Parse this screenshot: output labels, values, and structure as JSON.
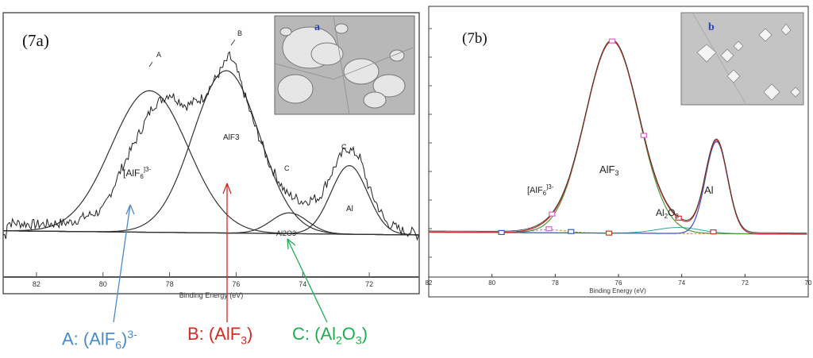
{
  "colors": {
    "blue": "#4a8bc9",
    "red": "#d42a22",
    "green": "#1fae4e",
    "peak_blue": "#3a55c8",
    "trace_red": "#c8352a",
    "trace_green": "#4e9a3a",
    "trace_teal": "#2aa5a5",
    "trace_orange": "#d9782b",
    "marker_pink": "#d860c8"
  },
  "legend": {
    "a_text": "A: (AlF",
    "a_sub": "6",
    "a_sup": "3-",
    "b_text": "B: (AlF",
    "b_sub": "3",
    "b_close": ")",
    "c_text": "C: (Al",
    "c_sub1": "2",
    "c_mid": "O",
    "c_sub2": "3",
    "c_close": ")"
  },
  "chart_data": [
    {
      "type": "line",
      "panel_label": "(7a)",
      "inset_label": "a",
      "xlabel": "Binding Energy (eV)",
      "xlim": [
        83,
        70.5
      ],
      "x_reversed": true,
      "x_ticks": [
        82,
        80,
        78,
        76,
        74,
        72
      ],
      "peak_labels": {
        "A": "A",
        "B": "B",
        "C": "C",
        "aif6": "[AlF",
        "aif6_sub": "6",
        "aif6_sup": "]3-",
        "alf3": "AlF3",
        "al2o3": "Al2O3",
        "al": "Al"
      },
      "series": [
        {
          "values_note": "experimental",
          "x": [
            82.9,
            82,
            81,
            80,
            79.5,
            79,
            78.5,
            78,
            77.5,
            77,
            76.5,
            76.2,
            76,
            75.5,
            75,
            74.5,
            74,
            73.5,
            73,
            72.7,
            72.3,
            72,
            71.5,
            71,
            70.6
          ],
          "y": [
            0.06,
            0.05,
            0.06,
            0.12,
            0.3,
            0.46,
            0.62,
            0.68,
            0.62,
            0.66,
            0.78,
            0.86,
            0.8,
            0.55,
            0.34,
            0.2,
            0.16,
            0.18,
            0.34,
            0.42,
            0.38,
            0.22,
            0.06,
            0.02,
            0.01
          ]
        }
      ],
      "components": [
        {
          "center": 78.6,
          "sigma": 1.15,
          "height": 0.68
        },
        {
          "center": 76.3,
          "sigma": 1.0,
          "height": 0.78
        },
        {
          "center": 74.4,
          "sigma": 0.55,
          "height": 0.1
        },
        {
          "center": 72.6,
          "sigma": 0.55,
          "height": 0.33
        }
      ]
    },
    {
      "type": "line",
      "panel_label": "(7b)",
      "inset_label": "b",
      "xlabel": "Binding Energy (eV)",
      "xlim": [
        82,
        70
      ],
      "x_reversed": true,
      "x_ticks": [
        82,
        80,
        78,
        76,
        74,
        72,
        70
      ],
      "peak_labels": {
        "aif6": "[AlF",
        "aif6_sub": "6",
        "aif6_sup": "]3-",
        "alf3": "AlF",
        "alf3_sub": "3",
        "al2o3": "Al",
        "al2o3_sub1": "2",
        "al2o3_mid": "O",
        "al2o3_sub2": "3",
        "al": "Al"
      },
      "components": [
        {
          "center": 78.2,
          "sigma": 0.55,
          "height": 0.015
        },
        {
          "center": 76.2,
          "sigma": 0.85,
          "height": 0.96
        },
        {
          "center": 74.1,
          "sigma": 0.7,
          "height": 0.03
        },
        {
          "center": 72.9,
          "sigma": 0.35,
          "height": 0.46
        }
      ]
    }
  ]
}
